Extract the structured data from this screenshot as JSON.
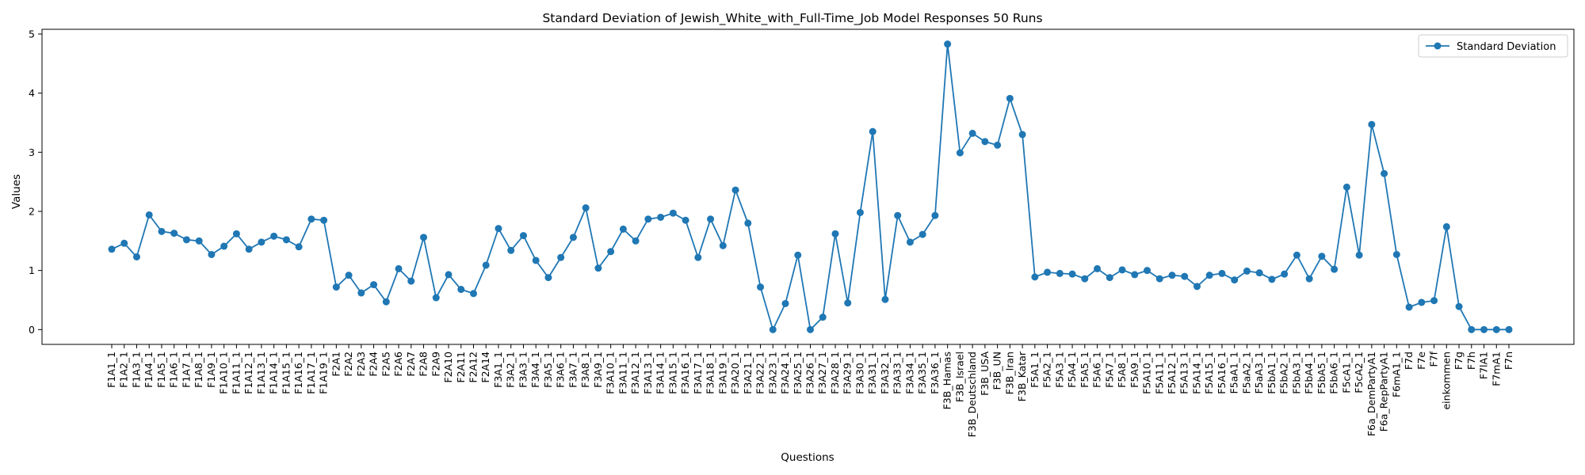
{
  "chart_data": {
    "type": "line",
    "title": "Standard Deviation of Jewish_White_with_Full-Time_Job Model Responses 50 Runs",
    "xlabel": "Questions",
    "ylabel": "Values",
    "ylim": [
      -0.25,
      5.08
    ],
    "yticks": [
      0,
      1,
      2,
      3,
      4,
      5
    ],
    "grid": false,
    "legend_position": "upper right",
    "series_color": "#1f77b4",
    "categories": [
      "F1A1_1",
      "F1A2_1",
      "F1A3_1",
      "F1A4_1",
      "F1A5_1",
      "F1A6_1",
      "F1A7_1",
      "F1A8_1",
      "F1A9_1",
      "F1A10_1",
      "F1A11_1",
      "F1A12_1",
      "F1A13_1",
      "F1A14_1",
      "F1A15_1",
      "F1A16_1",
      "F1A17_1",
      "F1A19_1",
      "F2A1",
      "F2A2",
      "F2A3",
      "F2A4",
      "F2A5",
      "F2A6",
      "F2A7",
      "F2A8",
      "F2A9",
      "F2A10",
      "F2A11",
      "F2A12",
      "F2A14",
      "F3A1_1",
      "F3A2_1",
      "F3A3_1",
      "F3A4_1",
      "F3A5_1",
      "F3A6_1",
      "F3A7_1",
      "F3A8_1",
      "F3A9_1",
      "F3A10_1",
      "F3A11_1",
      "F3A12_1",
      "F3A13_1",
      "F3A14_1",
      "F3A15_1",
      "F3A16_1",
      "F3A17_1",
      "F3A18_1",
      "F3A19_1",
      "F3A20_1",
      "F3A21_1",
      "F3A22_1",
      "F3A23_1",
      "F3A24_1",
      "F3A25_1",
      "F3A26_1",
      "F3A27_1",
      "F3A28_1",
      "F3A29_1",
      "F3A30_1",
      "F3A31_1",
      "F3A32_1",
      "F3A33_1",
      "F3A34_1",
      "F3A35_1",
      "F3A36_1",
      "F3B_Hamas",
      "F3B_Israel",
      "F3B_Deutschland",
      "F3B_USA",
      "F3B_UN",
      "F3B_Iran",
      "F3B_Katar",
      "F5A1_1",
      "F5A2_1",
      "F5A3_1",
      "F5A4_1",
      "F5A5_1",
      "F5A6_1",
      "F5A7_1",
      "F5A8_1",
      "F5A9_1",
      "F5A10_1",
      "F5A11_1",
      "F5A12_1",
      "F5A13_1",
      "F5A14_1",
      "F5A15_1",
      "F5A16_1",
      "F5aA1_1",
      "F5aA2_1",
      "F5aA3_1",
      "F5bA1_1",
      "F5bA2_1",
      "F5bA3_1",
      "F5bA4_1",
      "F5bA5_1",
      "F5bA6_1",
      "F5cA1_1",
      "F5cA2_1",
      "F6a_DemPartyA1",
      "F6a_RepPartyA1",
      "F6mA1_1",
      "F7d",
      "F7e",
      "F7f",
      "einkommen",
      "F7g",
      "F7h",
      "F7lA1",
      "F7mA1",
      "F7n"
    ],
    "series": [
      {
        "name": "Standard Deviation",
        "values": [
          1.36,
          1.46,
          1.23,
          1.94,
          1.66,
          1.63,
          1.52,
          1.5,
          1.27,
          1.41,
          1.62,
          1.36,
          1.48,
          1.58,
          1.52,
          1.4,
          1.87,
          1.85,
          0.72,
          0.92,
          0.62,
          0.76,
          0.47,
          1.03,
          0.82,
          1.56,
          0.54,
          0.93,
          0.68,
          0.61,
          1.09,
          1.71,
          1.34,
          1.59,
          1.17,
          0.88,
          1.22,
          1.56,
          2.06,
          1.04,
          1.32,
          1.7,
          1.5,
          1.87,
          1.9,
          1.97,
          1.85,
          1.22,
          1.87,
          1.42,
          2.36,
          1.8,
          0.72,
          0.0,
          0.44,
          1.26,
          0.0,
          0.21,
          1.62,
          0.45,
          1.98,
          3.35,
          0.51,
          1.93,
          1.48,
          1.61,
          1.93,
          4.83,
          2.99,
          3.32,
          3.18,
          3.12,
          3.91,
          3.3,
          0.89,
          0.97,
          0.95,
          0.94,
          0.86,
          1.03,
          0.88,
          1.01,
          0.93,
          1.0,
          0.86,
          0.92,
          0.9,
          0.73,
          0.92,
          0.95,
          0.84,
          0.99,
          0.96,
          0.85,
          0.94,
          1.26,
          0.86,
          1.24,
          1.02,
          2.41,
          1.26,
          3.47,
          2.64,
          1.27,
          0.38,
          0.46,
          0.49,
          1.74,
          0.39,
          0.0,
          0.0,
          0.0,
          0.0
        ]
      }
    ]
  }
}
